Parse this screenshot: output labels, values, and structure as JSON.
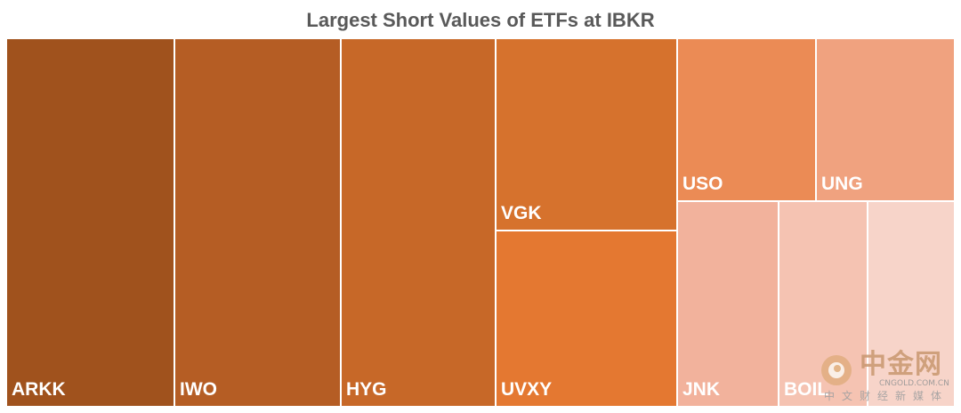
{
  "chart_data": {
    "type": "treemap",
    "title": "Largest Short Values of ETFs at IBKR",
    "items": [
      {
        "label": "ARKK",
        "value": 78,
        "color": "#A0521D"
      },
      {
        "label": "IWO",
        "value": 75,
        "color": "#B55D24"
      },
      {
        "label": "HYG",
        "value": 70,
        "color": "#C76828"
      },
      {
        "label": "VGK",
        "value": 44,
        "color": "#D6722D"
      },
      {
        "label": "UVXY",
        "value": 40,
        "color": "#E47831"
      },
      {
        "label": "USO",
        "value": 19,
        "color": "#EB8B55"
      },
      {
        "label": "UNG",
        "value": 19,
        "color": "#F0A27F"
      },
      {
        "label": "JNK",
        "value": 14,
        "color": "#F2B29C"
      },
      {
        "label": "BOIL",
        "value": 12,
        "color": "#F5C3B2"
      },
      {
        "label": "",
        "value": 12,
        "color": "#F7D4C9"
      }
    ]
  },
  "watermark": {
    "brand": "中金网",
    "site": "CNGOLD.COM.CN",
    "tagline": "中文财经新媒体"
  }
}
